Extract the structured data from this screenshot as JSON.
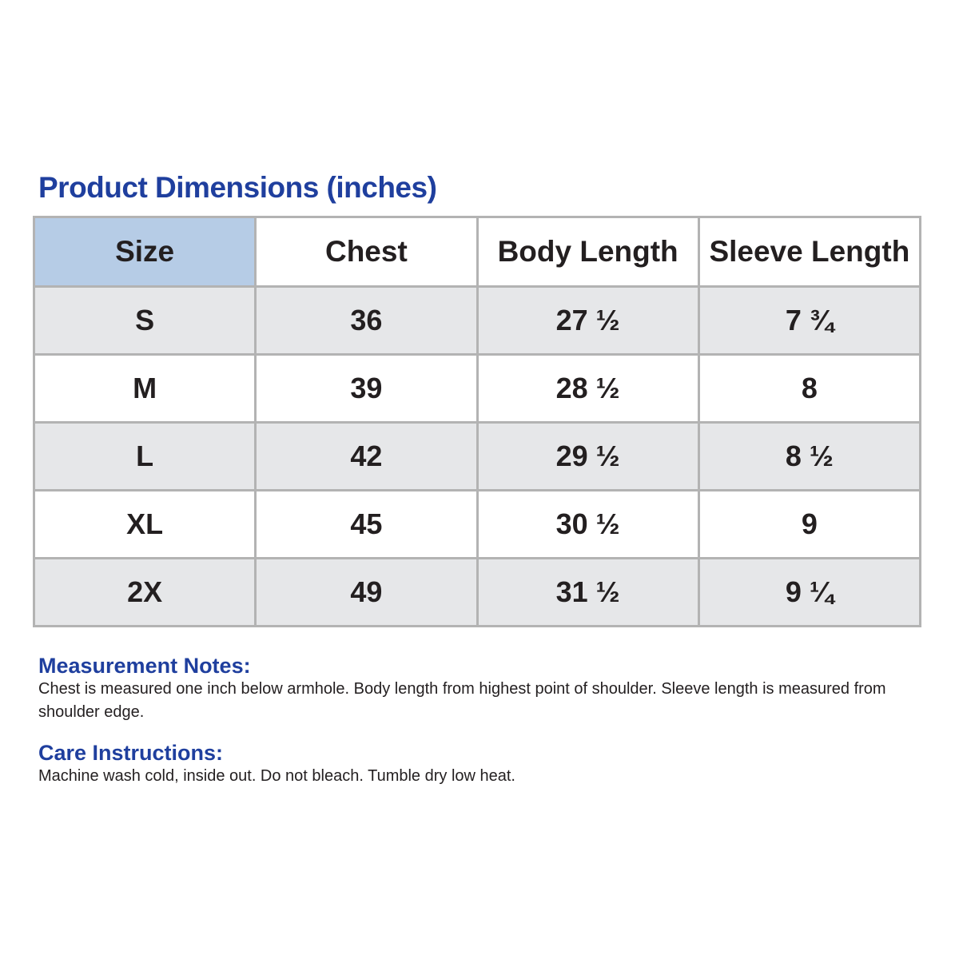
{
  "title": "Product Dimensions (inches)",
  "colors": {
    "accent": "#1f3f9e",
    "header_highlight": "#b6cce6",
    "row_alt": "#e6e7e9",
    "border": "#b3b3b3"
  },
  "table": {
    "headers": [
      "Size",
      "Chest",
      "Body Length",
      "Sleeve Length"
    ],
    "rows": [
      [
        "S",
        "36",
        "27 ½",
        "7 ¾"
      ],
      [
        "M",
        "39",
        "28 ½",
        "8"
      ],
      [
        "L",
        "42",
        "29 ½",
        "8 ½"
      ],
      [
        "XL",
        "45",
        "30 ½",
        "9"
      ],
      [
        "2X",
        "49",
        "31 ½",
        "9 ¼"
      ]
    ]
  },
  "measurement_notes": {
    "heading": "Measurement Notes:",
    "text": "Chest is measured one inch below armhole.  Body length from highest point of shoulder. Sleeve length is measured from shoulder edge."
  },
  "care_instructions": {
    "heading": "Care Instructions:",
    "text": "Machine wash cold, inside out. Do not bleach. Tumble dry low heat."
  }
}
